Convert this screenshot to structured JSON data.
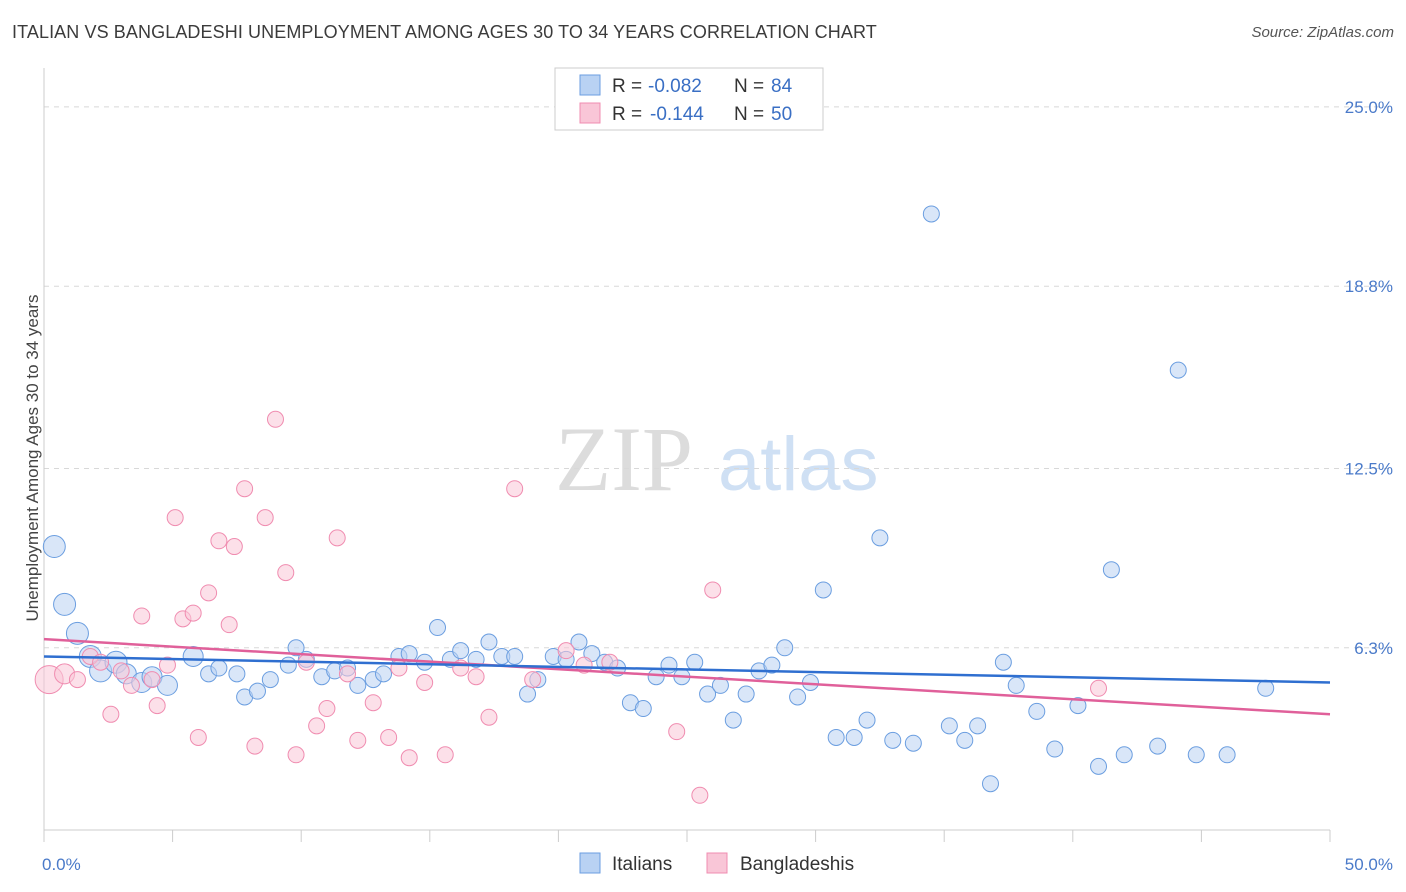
{
  "header": {
    "title": "ITALIAN VS BANGLADESHI UNEMPLOYMENT AMONG AGES 30 TO 34 YEARS CORRELATION CHART",
    "source": "Source: ZipAtlas.com"
  },
  "watermark": {
    "zip": "ZIP",
    "atlas": "atlas"
  },
  "legend": {
    "rows": [
      {
        "r_label": "R = ",
        "r_value": "-0.082",
        "n_label": "N = ",
        "n_value": "84"
      },
      {
        "r_label": "R = ",
        "r_value": "-0.144",
        "n_label": "N = ",
        "n_value": "50"
      }
    ]
  },
  "chart_data": {
    "type": "scatter",
    "title": "ITALIAN VS BANGLADESHI UNEMPLOYMENT AMONG AGES 30 TO 34 YEARS CORRELATION CHART",
    "xlabel": "",
    "ylabel": "Unemployment Among Ages 30 to 34 years",
    "xlim": [
      0,
      50
    ],
    "ylim": [
      0,
      26
    ],
    "x_tick_labels": [
      "0.0%",
      "50.0%"
    ],
    "y_ticks": [
      6.3,
      12.5,
      18.8,
      25.0
    ],
    "y_tick_labels": [
      "6.3%",
      "12.5%",
      "18.8%",
      "25.0%"
    ],
    "grid": true,
    "legend_placement": "top-center",
    "colors": {
      "italians": "#6b9ee0",
      "bangladeshis": "#f08cb0",
      "italians_line": "#2f6fd0",
      "bangladeshis_line": "#e0609a"
    },
    "series": [
      {
        "name": "Italians",
        "trend": {
          "x": [
            0,
            50
          ],
          "y": [
            6.0,
            5.1
          ]
        },
        "points": [
          [
            0.4,
            9.8
          ],
          [
            0.8,
            7.8
          ],
          [
            1.3,
            6.8
          ],
          [
            1.8,
            6.0
          ],
          [
            2.2,
            5.5
          ],
          [
            2.8,
            5.8
          ],
          [
            3.2,
            5.4
          ],
          [
            3.8,
            5.1
          ],
          [
            4.2,
            5.3
          ],
          [
            4.8,
            5.0
          ],
          [
            5.8,
            6.0
          ],
          [
            6.4,
            5.4
          ],
          [
            6.8,
            5.6
          ],
          [
            7.5,
            5.4
          ],
          [
            7.8,
            4.6
          ],
          [
            8.3,
            4.8
          ],
          [
            8.8,
            5.2
          ],
          [
            9.5,
            5.7
          ],
          [
            9.8,
            6.3
          ],
          [
            10.2,
            5.9
          ],
          [
            10.8,
            5.3
          ],
          [
            11.3,
            5.5
          ],
          [
            11.8,
            5.6
          ],
          [
            12.2,
            5.0
          ],
          [
            12.8,
            5.2
          ],
          [
            13.2,
            5.4
          ],
          [
            13.8,
            6.0
          ],
          [
            14.2,
            6.1
          ],
          [
            14.8,
            5.8
          ],
          [
            15.3,
            7.0
          ],
          [
            15.8,
            5.9
          ],
          [
            16.2,
            6.2
          ],
          [
            16.8,
            5.9
          ],
          [
            17.3,
            6.5
          ],
          [
            17.8,
            6.0
          ],
          [
            18.3,
            6.0
          ],
          [
            18.8,
            4.7
          ],
          [
            19.2,
            5.2
          ],
          [
            19.8,
            6.0
          ],
          [
            20.3,
            5.9
          ],
          [
            20.8,
            6.5
          ],
          [
            21.3,
            6.1
          ],
          [
            21.8,
            5.8
          ],
          [
            22.3,
            5.6
          ],
          [
            22.8,
            4.4
          ],
          [
            23.3,
            4.2
          ],
          [
            23.8,
            5.3
          ],
          [
            24.3,
            5.7
          ],
          [
            24.8,
            5.3
          ],
          [
            25.3,
            5.8
          ],
          [
            25.8,
            4.7
          ],
          [
            26.3,
            5.0
          ],
          [
            26.8,
            3.8
          ],
          [
            27.3,
            4.7
          ],
          [
            27.8,
            5.5
          ],
          [
            28.3,
            5.7
          ],
          [
            28.8,
            6.3
          ],
          [
            29.3,
            4.6
          ],
          [
            29.8,
            5.1
          ],
          [
            30.3,
            8.3
          ],
          [
            30.8,
            3.2
          ],
          [
            31.5,
            3.2
          ],
          [
            32.0,
            3.8
          ],
          [
            32.5,
            10.1
          ],
          [
            33.0,
            3.1
          ],
          [
            33.8,
            3.0
          ],
          [
            34.5,
            21.3
          ],
          [
            35.2,
            3.6
          ],
          [
            35.8,
            3.1
          ],
          [
            36.3,
            3.6
          ],
          [
            36.8,
            1.6
          ],
          [
            37.3,
            5.8
          ],
          [
            37.8,
            5.0
          ],
          [
            38.6,
            4.1
          ],
          [
            39.3,
            2.8
          ],
          [
            40.2,
            4.3
          ],
          [
            41.0,
            2.2
          ],
          [
            41.5,
            9.0
          ],
          [
            42.0,
            2.6
          ],
          [
            43.3,
            2.9
          ],
          [
            44.1,
            15.9
          ],
          [
            44.8,
            2.6
          ],
          [
            46.0,
            2.6
          ],
          [
            47.5,
            4.9
          ]
        ]
      },
      {
        "name": "Bangladeshis",
        "trend": {
          "x": [
            0,
            50
          ],
          "y": [
            6.6,
            4.0
          ]
        },
        "points": [
          [
            0.2,
            5.2
          ],
          [
            0.8,
            5.4
          ],
          [
            1.3,
            5.2
          ],
          [
            1.8,
            6.0
          ],
          [
            2.2,
            5.8
          ],
          [
            2.6,
            4.0
          ],
          [
            3.0,
            5.5
          ],
          [
            3.4,
            5.0
          ],
          [
            3.8,
            7.4
          ],
          [
            4.2,
            5.2
          ],
          [
            4.4,
            4.3
          ],
          [
            4.8,
            5.7
          ],
          [
            5.1,
            10.8
          ],
          [
            5.4,
            7.3
          ],
          [
            5.8,
            7.5
          ],
          [
            6.0,
            3.2
          ],
          [
            6.4,
            8.2
          ],
          [
            6.8,
            10.0
          ],
          [
            7.2,
            7.1
          ],
          [
            7.4,
            9.8
          ],
          [
            7.8,
            11.8
          ],
          [
            8.2,
            2.9
          ],
          [
            8.6,
            10.8
          ],
          [
            9.0,
            14.2
          ],
          [
            9.4,
            8.9
          ],
          [
            9.8,
            2.6
          ],
          [
            10.2,
            5.8
          ],
          [
            10.6,
            3.6
          ],
          [
            11.0,
            4.2
          ],
          [
            11.4,
            10.1
          ],
          [
            11.8,
            5.4
          ],
          [
            12.2,
            3.1
          ],
          [
            12.8,
            4.4
          ],
          [
            13.4,
            3.2
          ],
          [
            13.8,
            5.6
          ],
          [
            14.2,
            2.5
          ],
          [
            14.8,
            5.1
          ],
          [
            15.6,
            2.6
          ],
          [
            16.2,
            5.6
          ],
          [
            16.8,
            5.3
          ],
          [
            17.3,
            3.9
          ],
          [
            18.3,
            11.8
          ],
          [
            19.0,
            5.2
          ],
          [
            20.3,
            6.2
          ],
          [
            21.0,
            5.7
          ],
          [
            22.0,
            5.8
          ],
          [
            24.6,
            3.4
          ],
          [
            25.5,
            1.2
          ],
          [
            26.0,
            8.3
          ],
          [
            41.0,
            4.9
          ]
        ]
      }
    ],
    "bottom_legend": [
      "Italians",
      "Bangladeshis"
    ]
  }
}
